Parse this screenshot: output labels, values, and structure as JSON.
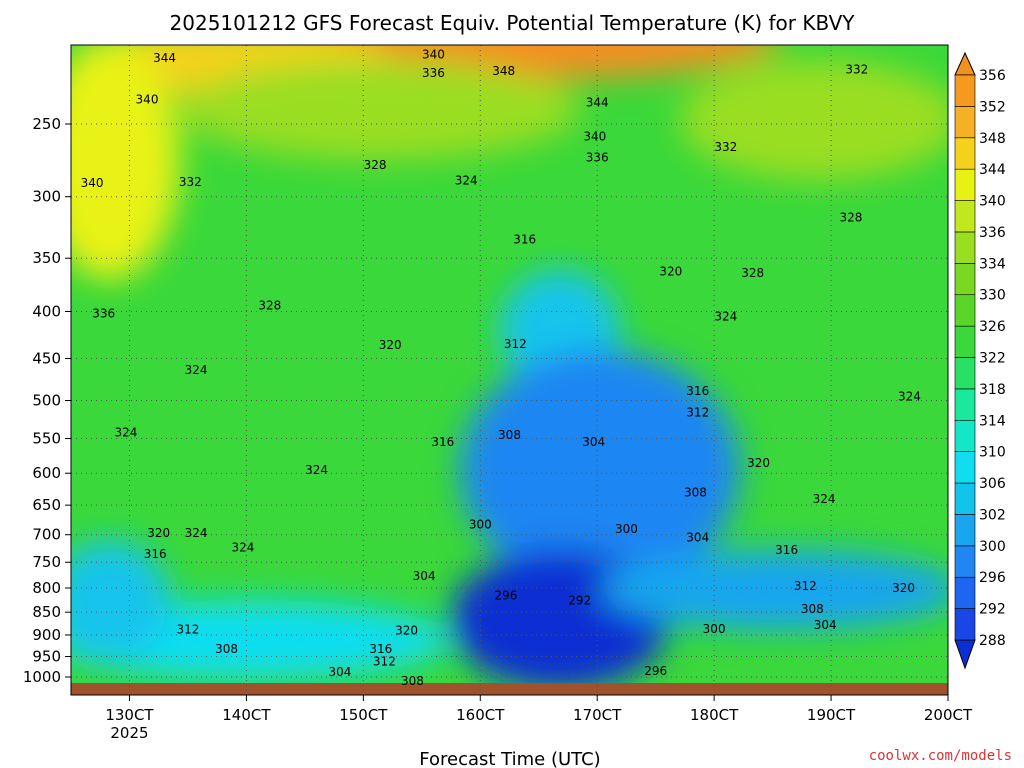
{
  "chart_data": {
    "type": "contour",
    "title": "2025101212 GFS Forecast Equiv. Potential Temperature (K) for KBVY",
    "xlabel": "Forecast Time (UTC)",
    "ylabel": "",
    "credit": "coolwx.com/models",
    "x_axis": {
      "range_days": [
        12.5,
        20.0
      ],
      "ticks": [
        {
          "day": 13,
          "label": "130CT",
          "sublabel": "2025"
        },
        {
          "day": 14,
          "label": "140CT"
        },
        {
          "day": 15,
          "label": "150CT"
        },
        {
          "day": 16,
          "label": "160CT"
        },
        {
          "day": 17,
          "label": "170CT"
        },
        {
          "day": 18,
          "label": "180CT"
        },
        {
          "day": 19,
          "label": "190CT"
        },
        {
          "day": 20,
          "label": "200CT"
        }
      ]
    },
    "y_axis": {
      "scale": "log-pressure",
      "range_hPa": [
        1000,
        200
      ],
      "ticks": [
        250,
        300,
        350,
        400,
        450,
        500,
        550,
        600,
        650,
        700,
        750,
        800,
        850,
        900,
        950,
        1000
      ]
    },
    "colorbar": {
      "levels": [
        288,
        292,
        296,
        300,
        302,
        306,
        310,
        314,
        318,
        322,
        326,
        330,
        334,
        336,
        340,
        344,
        348,
        352,
        356
      ],
      "colors": [
        "#0b2fd2",
        "#1847e6",
        "#1e66f0",
        "#1f86f2",
        "#19a6ee",
        "#12c4ec",
        "#10def0",
        "#12e8c8",
        "#1ae89a",
        "#28e064",
        "#3ad83a",
        "#5ad628",
        "#7ad822",
        "#9ade20",
        "#c0e81c",
        "#e8f212",
        "#f4d21c",
        "#f6b024",
        "#f59a1e",
        "#f39020"
      ]
    },
    "contour_labels": [
      {
        "day": 13.3,
        "p": 212,
        "v": "344"
      },
      {
        "day": 13.15,
        "p": 235,
        "v": "340"
      },
      {
        "day": 15.6,
        "p": 210,
        "v": "340"
      },
      {
        "day": 15.6,
        "p": 220,
        "v": "336"
      },
      {
        "day": 16.2,
        "p": 219,
        "v": "348"
      },
      {
        "day": 17.0,
        "p": 237,
        "v": "344"
      },
      {
        "day": 16.98,
        "p": 258,
        "v": "340"
      },
      {
        "day": 17.0,
        "p": 272,
        "v": "336"
      },
      {
        "day": 18.1,
        "p": 265,
        "v": "332"
      },
      {
        "day": 19.22,
        "p": 218,
        "v": "332"
      },
      {
        "day": 12.68,
        "p": 290,
        "v": "340"
      },
      {
        "day": 13.52,
        "p": 289,
        "v": "332"
      },
      {
        "day": 15.1,
        "p": 277,
        "v": "328"
      },
      {
        "day": 15.88,
        "p": 288,
        "v": "324"
      },
      {
        "day": 16.38,
        "p": 334,
        "v": "316"
      },
      {
        "day": 17.63,
        "p": 362,
        "v": "320"
      },
      {
        "day": 18.33,
        "p": 363,
        "v": "328"
      },
      {
        "day": 19.17,
        "p": 316,
        "v": "328"
      },
      {
        "day": 12.78,
        "p": 402,
        "v": "336"
      },
      {
        "day": 14.2,
        "p": 394,
        "v": "328"
      },
      {
        "day": 18.1,
        "p": 405,
        "v": "324"
      },
      {
        "day": 15.23,
        "p": 435,
        "v": "320"
      },
      {
        "day": 16.3,
        "p": 434,
        "v": "312"
      },
      {
        "day": 13.57,
        "p": 463,
        "v": "324"
      },
      {
        "day": 17.86,
        "p": 488,
        "v": "316"
      },
      {
        "day": 17.86,
        "p": 515,
        "v": "312"
      },
      {
        "day": 19.67,
        "p": 495,
        "v": "324"
      },
      {
        "day": 12.97,
        "p": 542,
        "v": "324"
      },
      {
        "day": 15.68,
        "p": 555,
        "v": "316"
      },
      {
        "day": 16.25,
        "p": 545,
        "v": "308"
      },
      {
        "day": 16.97,
        "p": 555,
        "v": "304"
      },
      {
        "day": 18.38,
        "p": 585,
        "v": "320"
      },
      {
        "day": 14.6,
        "p": 595,
        "v": "324"
      },
      {
        "day": 17.84,
        "p": 630,
        "v": "308"
      },
      {
        "day": 18.94,
        "p": 640,
        "v": "324"
      },
      {
        "day": 13.25,
        "p": 697,
        "v": "320"
      },
      {
        "day": 13.57,
        "p": 697,
        "v": "324"
      },
      {
        "day": 16.0,
        "p": 682,
        "v": "300"
      },
      {
        "day": 17.25,
        "p": 690,
        "v": "300"
      },
      {
        "day": 17.86,
        "p": 705,
        "v": "304"
      },
      {
        "day": 13.22,
        "p": 735,
        "v": "316"
      },
      {
        "day": 13.97,
        "p": 723,
        "v": "324"
      },
      {
        "day": 18.62,
        "p": 727,
        "v": "316"
      },
      {
        "day": 15.52,
        "p": 776,
        "v": "304"
      },
      {
        "day": 16.22,
        "p": 815,
        "v": "296"
      },
      {
        "day": 16.85,
        "p": 826,
        "v": "292"
      },
      {
        "day": 18.78,
        "p": 796,
        "v": "312"
      },
      {
        "day": 19.62,
        "p": 800,
        "v": "320"
      },
      {
        "day": 18.84,
        "p": 843,
        "v": "308"
      },
      {
        "day": 13.5,
        "p": 888,
        "v": "312"
      },
      {
        "day": 13.83,
        "p": 932,
        "v": "308"
      },
      {
        "day": 15.37,
        "p": 890,
        "v": "320"
      },
      {
        "day": 18.0,
        "p": 887,
        "v": "300"
      },
      {
        "day": 18.95,
        "p": 878,
        "v": "304"
      },
      {
        "day": 15.15,
        "p": 932,
        "v": "316"
      },
      {
        "day": 15.18,
        "p": 962,
        "v": "312"
      },
      {
        "day": 14.8,
        "p": 988,
        "v": "304"
      },
      {
        "day": 17.5,
        "p": 985,
        "v": "296"
      },
      {
        "day": 15.42,
        "p": 1010,
        "v": "308"
      }
    ]
  }
}
